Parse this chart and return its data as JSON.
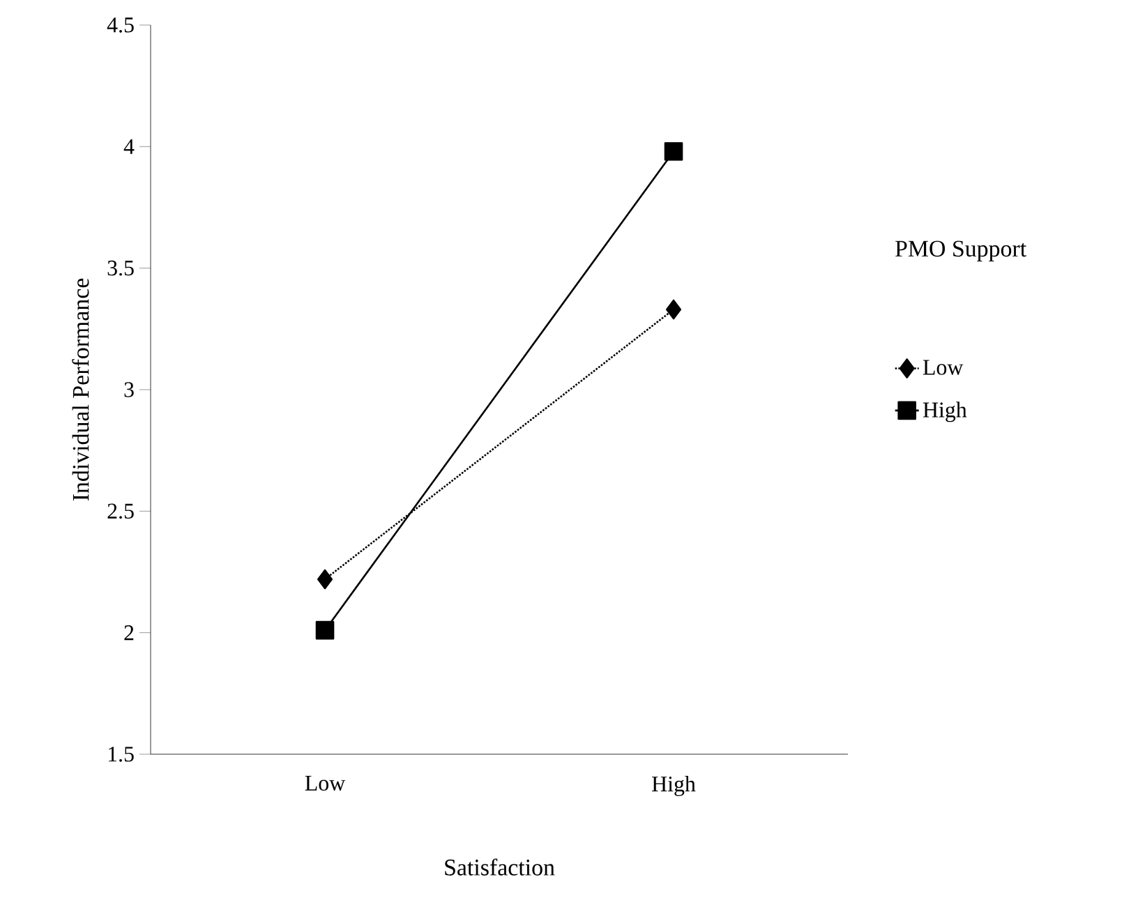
{
  "chart_data": {
    "type": "line",
    "xlabel": "Satisfaction",
    "ylabel": "Individual Performance",
    "legend_title": "PMO Support",
    "categories": [
      "Low",
      "High"
    ],
    "ylim": [
      1.5,
      4.5
    ],
    "yticks": [
      1.5,
      2,
      {
        "value": 2.5,
        "label": "2.5"
      },
      3,
      {
        "value": 3.5,
        "label": "3.5"
      },
      4,
      {
        "value": 4.5,
        "label": "4.5"
      }
    ],
    "grid": false,
    "legend": "right",
    "series": [
      {
        "name": "Low",
        "color": "#000000",
        "values": [
          2.22,
          3.33
        ],
        "marker": "diamond",
        "line_style": "dotted"
      },
      {
        "name": "High",
        "color": "#000000",
        "values": [
          2.01,
          3.98
        ],
        "marker": "square",
        "line_style": "solid"
      }
    ]
  }
}
